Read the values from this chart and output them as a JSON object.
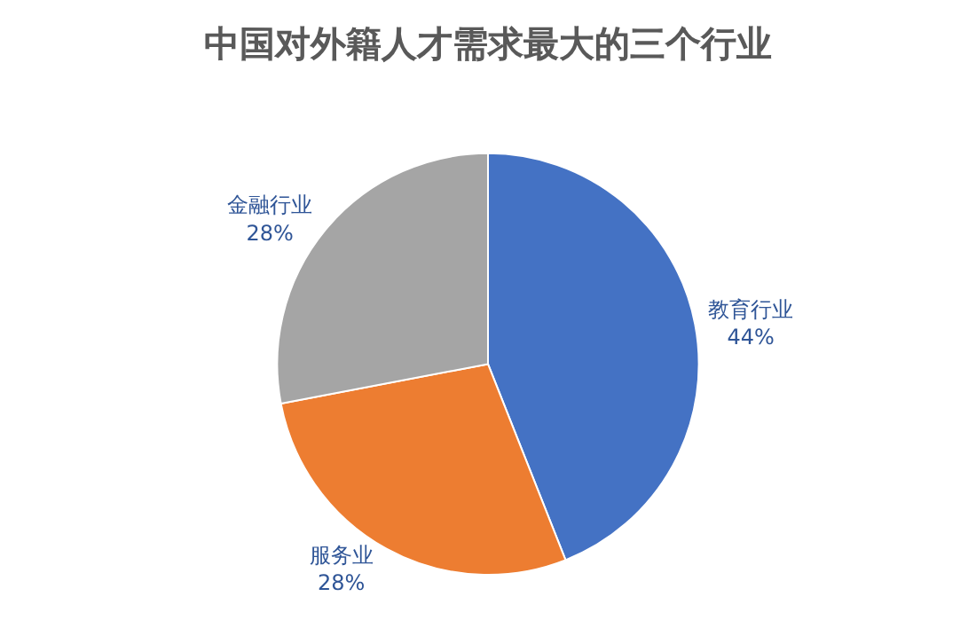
{
  "chart_data": {
    "type": "pie",
    "title": "中国对外籍人才需求最大的三个行业",
    "categories": [
      "教育行业",
      "服务业",
      "金融行业"
    ],
    "values": [
      44,
      28,
      28
    ],
    "value_labels": [
      "44%",
      "28%",
      "28%"
    ],
    "colors": [
      "#4472c4",
      "#ed7d31",
      "#a5a5a5"
    ],
    "legend": false
  }
}
